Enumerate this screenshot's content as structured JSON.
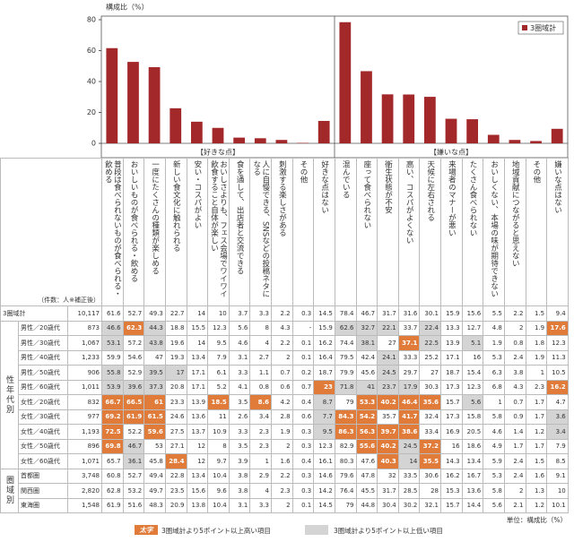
{
  "chart_data": {
    "type": "bar",
    "y_label": "構成比（%）",
    "series_name": "3圏域計",
    "color": "#a3282a",
    "ylim": [
      0,
      80
    ],
    "yticks": [
      0,
      20,
      40,
      60,
      80
    ],
    "legend": "top-right",
    "groups": [
      {
        "label": "【好きな点】",
        "categories": [
          "普段は食べられないものが食べられる・飲める",
          "おいしいものが食べられる・飲める",
          "一度にたくさんの種類が楽しめる",
          "新しい食文化に触れられる",
          "安い・コスパがよい",
          "おいしさよりも、フェス会場でワイワイ飲食すること自体が楽しい",
          "食を通して、出店者と交流できる",
          "人に自慢できる、SNSなどの投稿ネタになる",
          "刺激する楽しさがある",
          "その他",
          "好きな点はない"
        ],
        "values": [
          61.6,
          52.7,
          49.3,
          22.7,
          14.0,
          10.0,
          3.7,
          3.3,
          2.2,
          0.3,
          14.5
        ]
      },
      {
        "label": "【嫌いな点】",
        "categories": [
          "混んでいる",
          "座って食べられない",
          "衛生状態が不安",
          "高い、コスパがよくない",
          "天候に左右される",
          "来場者のマナーが悪い",
          "たくさん食べられない",
          "おいしくない、本場の味が期待できない",
          "地域貢献につながると思えない",
          "その他",
          "嫌いな点はない"
        ],
        "values": [
          78.4,
          46.7,
          31.7,
          31.6,
          30.1,
          15.9,
          15.6,
          5.5,
          2.2,
          1.5,
          9.4
        ]
      }
    ]
  },
  "table": {
    "count_header": "（件数：人※補正後）",
    "total_count": "10,117",
    "highlight_threshold": 5,
    "high_color": "#e07b39",
    "low_color": "#d4d4d4",
    "groups": [
      {
        "label": "性年代別",
        "rows": [
          {
            "label": "男性／20歳代",
            "count": "873",
            "values": [
              46.6,
              62.3,
              44.3,
              18.8,
              15.5,
              12.3,
              5.6,
              8.0,
              4.3,
              "-",
              15.9,
              62.6,
              32.7,
              22.1,
              33.7,
              22.4,
              13.3,
              12.7,
              4.8,
              2.0,
              1.9,
              17.6
            ]
          },
          {
            "label": "男性／30歳代",
            "count": "1,067",
            "values": [
              53.1,
              57.2,
              43.8,
              19.6,
              14.0,
              9.5,
              4.6,
              4.0,
              2.2,
              0.1,
              16.2,
              74.4,
              38.1,
              27.0,
              37.1,
              22.5,
              13.9,
              5.1,
              1.9,
              0.8,
              1.8,
              12.3
            ]
          },
          {
            "label": "男性／40歳代",
            "count": "1,233",
            "values": [
              59.9,
              54.6,
              47.0,
              19.3,
              13.4,
              7.9,
              3.1,
              2.7,
              2.0,
              0.1,
              16.4,
              79.5,
              42.4,
              24.1,
              33.3,
              25.2,
              17.1,
              16.0,
              5.3,
              2.4,
              1.9,
              11.3
            ]
          },
          {
            "label": "男性／50歳代",
            "count": "906",
            "values": [
              55.8,
              52.9,
              39.5,
              17.0,
              17.1,
              6.1,
              3.3,
              1.1,
              0.7,
              0.2,
              18.7,
              79.9,
              45.6,
              24.5,
              29.7,
              27.0,
              18.7,
              15.4,
              6.3,
              3.8,
              1.0,
              10.5
            ]
          },
          {
            "label": "男性／60歳代",
            "count": "1,011",
            "values": [
              53.9,
              39.6,
              37.3,
              20.8,
              17.1,
              5.2,
              4.1,
              0.8,
              0.6,
              0.7,
              23.0,
              71.8,
              41.0,
              23.7,
              17.9,
              30.3,
              17.3,
              12.3,
              6.8,
              4.3,
              2.3,
              16.2
            ]
          },
          {
            "label": "女性／20歳代",
            "count": "832",
            "values": [
              66.7,
              66.5,
              61.0,
              23.3,
              13.9,
              18.5,
              3.5,
              8.6,
              4.2,
              0.4,
              8.7,
              79.0,
              53.3,
              40.2,
              46.4,
              35.6,
              15.7,
              5.6,
              1.0,
              0.7,
              1.7,
              4.7
            ]
          },
          {
            "label": "女性／30歳代",
            "count": "977",
            "values": [
              69.2,
              61.9,
              61.5,
              24.6,
              13.6,
              11.0,
              2.6,
              3.4,
              2.8,
              0.6,
              7.7,
              84.3,
              54.2,
              35.7,
              41.7,
              32.4,
              17.3,
              15.8,
              5.8,
              0.9,
              1.7,
              3.6
            ]
          },
          {
            "label": "女性／40歳代",
            "count": "1,193",
            "values": [
              72.5,
              52.2,
              59.6,
              27.5,
              13.7,
              10.9,
              3.3,
              2.3,
              1.9,
              0.3,
              9.5,
              86.3,
              56.3,
              39.7,
              38.6,
              33.4,
              16.9,
              20.5,
              4.6,
              1.4,
              1.2,
              3.4
            ]
          },
          {
            "label": "女性／50歳代",
            "count": "896",
            "values": [
              69.8,
              46.7,
              53.0,
              27.1,
              12.0,
              8.0,
              3.5,
              2.3,
              2.0,
              0.3,
              12.3,
              82.9,
              55.6,
              40.2,
              24.5,
              37.2,
              16.0,
              18.6,
              4.9,
              1.7,
              1.7,
              7.9
            ]
          },
          {
            "label": "女性／60歳代",
            "count": "1,071",
            "values": [
              65.7,
              36.1,
              45.8,
              28.4,
              12.0,
              9.7,
              3.9,
              1.0,
              1.6,
              0.4,
              16.1,
              80.3,
              47.6,
              40.3,
              14.0,
              35.5,
              14.3,
              13.4,
              5.9,
              2.4,
              1.5,
              8.5
            ]
          }
        ]
      },
      {
        "label": "圏域別",
        "rows": [
          {
            "label": "首都圏",
            "count": "3,748",
            "values": [
              60.8,
              52.7,
              49.4,
              22.8,
              13.4,
              10.4,
              3.8,
              2.9,
              2.2,
              0.3,
              14.6,
              79.6,
              47.8,
              32.0,
              33.5,
              30.6,
              16.2,
              16.7,
              5.3,
              2.4,
              1.6,
              9.1
            ]
          },
          {
            "label": "関西圏",
            "count": "2,820",
            "values": [
              62.8,
              53.2,
              49.7,
              23.5,
              15.6,
              9.6,
              3.8,
              4.0,
              2.3,
              0.3,
              14.2,
              76.4,
              45.5,
              31.7,
              28.5,
              28.0,
              15.3,
              13.6,
              5.8,
              2.0,
              1.3,
              10.0
            ]
          },
          {
            "label": "東海圏",
            "count": "1,548",
            "values": [
              61.9,
              51.6,
              48.3,
              20.9,
              13.8,
              10.4,
              3.1,
              3.3,
              2.0,
              0.1,
              14.5,
              79.0,
              44.8,
              30.4,
              30.2,
              32.1,
              15.7,
              14.4,
              5.6,
              2.1,
              1.2,
              10.1
            ]
          }
        ]
      }
    ],
    "legend": {
      "high_sample": "太字",
      "high": "3圏域計より5ポイント以上高い項目",
      "low": "3圏域計より5ポイント以上低い項目"
    },
    "unit": "単位：構成比（%）"
  }
}
